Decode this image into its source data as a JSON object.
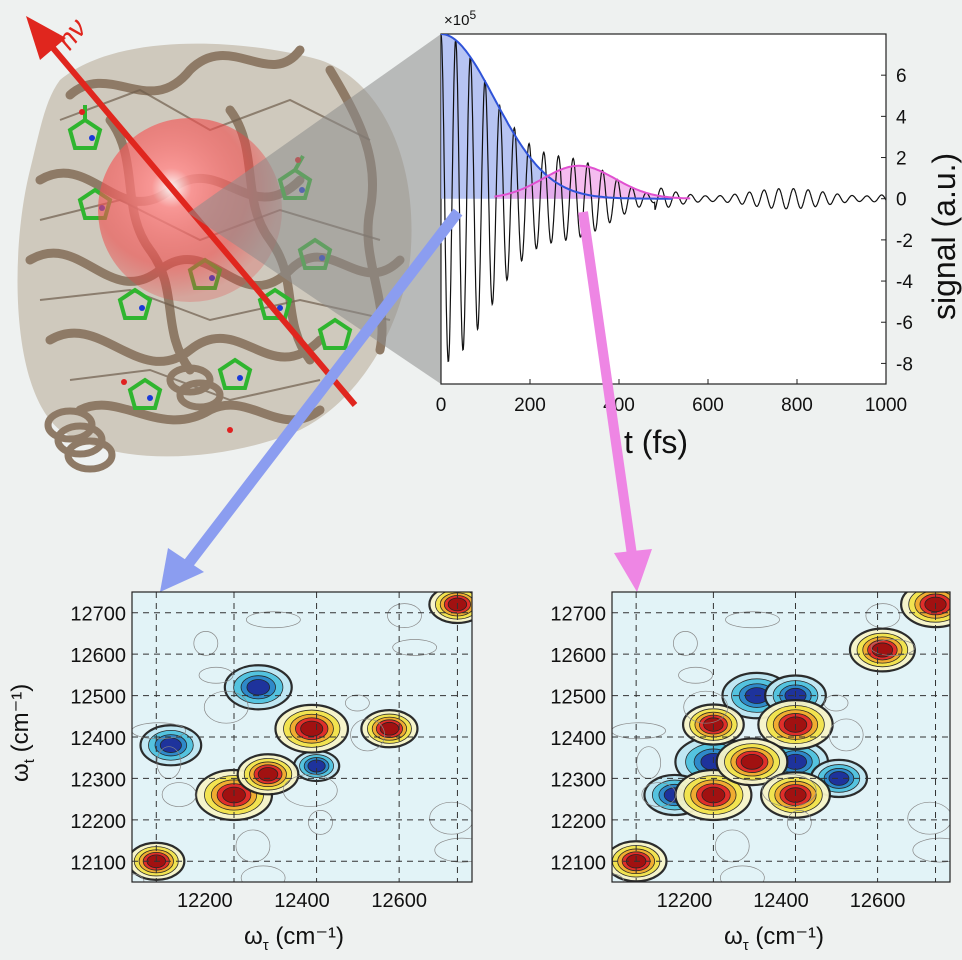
{
  "labels": {
    "photon": "hν",
    "time_axis": "t (fs)",
    "signal_axis": "signal (a.u.)",
    "multiplier": "×10",
    "multiplier_exp": "5",
    "omega_t_symbol": "ω",
    "omega_t_sub": "t",
    "omega_t_unit": "(cm⁻¹)",
    "omega_tau_symbol": "ω",
    "omega_tau_sub": "τ",
    "omega_tau_unit": "(cm⁻¹)"
  },
  "colors": {
    "photon_arrow": "#e0261e",
    "blue_arrow": "#8b9df0",
    "pink_arrow": "#ee86e4",
    "blue_envelope": "#2f53d8",
    "pink_envelope": "#e050d0",
    "protein": "#8e7a66",
    "chromophore": "#2fb52f"
  },
  "chart_data": [
    {
      "type": "line",
      "title": "",
      "xlabel": "t (fs)",
      "ylabel": "signal (a.u.)",
      "x_ticks": [
        "0",
        "200",
        "400",
        "600",
        "800",
        "1000"
      ],
      "y_ticks": [
        "6",
        "4",
        "2",
        "0",
        "-2",
        "-4",
        "-6",
        "-8"
      ],
      "xlim": [
        0,
        1000
      ],
      "ylim": [
        -9,
        8
      ],
      "y_multiplier": "×10^5",
      "series": [
        {
          "description": "oscillating signal",
          "values_desc": "damped oscillation, amplitude ~8 at t=0, ~1.5 at 300 fs, small beating to 1000 fs"
        },
        {
          "description": "blue envelope",
          "peak_t": 0,
          "peak_value": 8
        },
        {
          "description": "pink envelope",
          "peak_t": 310,
          "peak_value": 1.6
        }
      ]
    },
    {
      "type": "heatmap",
      "xlabel": "ωτ (cm⁻¹)",
      "ylabel": "ωt (cm⁻¹)",
      "x_ticks": [
        "12200",
        "12400",
        "12600"
      ],
      "y_ticks": [
        "12700",
        "12600",
        "12500",
        "12400",
        "12300",
        "12200",
        "12100"
      ],
      "xlim": [
        12050,
        12750
      ],
      "ylim": [
        12050,
        12750
      ],
      "positive_peaks": [
        [
          12260,
          12260,
          1.0
        ],
        [
          12420,
          12420,
          0.9
        ],
        [
          12330,
          12310,
          0.6
        ],
        [
          12720,
          12720,
          0.5
        ],
        [
          12100,
          12100,
          0.5
        ],
        [
          12580,
          12420,
          0.5
        ]
      ],
      "negative_peaks": [
        [
          12310,
          12520,
          0.75
        ],
        [
          12130,
          12380,
          0.6
        ],
        [
          12430,
          12330,
          0.3
        ]
      ]
    },
    {
      "type": "heatmap",
      "xlabel": "ωτ (cm⁻¹)",
      "ylabel": "",
      "x_ticks": [
        "12200",
        "12400",
        "12600"
      ],
      "y_ticks": [
        "12700",
        "12600",
        "12500",
        "12400",
        "12300",
        "12200",
        "12100"
      ],
      "xlim": [
        12050,
        12750
      ],
      "ylim": [
        12050,
        12750
      ],
      "positive_peaks": [
        [
          12260,
          12260,
          1.0
        ],
        [
          12430,
          12430,
          0.95
        ],
        [
          12340,
          12340,
          0.85
        ],
        [
          12430,
          12260,
          0.8
        ],
        [
          12720,
          12720,
          0.8
        ],
        [
          12610,
          12610,
          0.7
        ],
        [
          12100,
          12100,
          0.6
        ],
        [
          12260,
          12430,
          0.6
        ]
      ],
      "negative_peaks": [
        [
          12260,
          12340,
          1.0
        ],
        [
          12430,
          12340,
          0.7
        ],
        [
          12350,
          12500,
          0.8
        ],
        [
          12430,
          12500,
          0.6
        ],
        [
          12180,
          12260,
          0.6
        ],
        [
          12520,
          12300,
          0.5
        ]
      ]
    }
  ]
}
